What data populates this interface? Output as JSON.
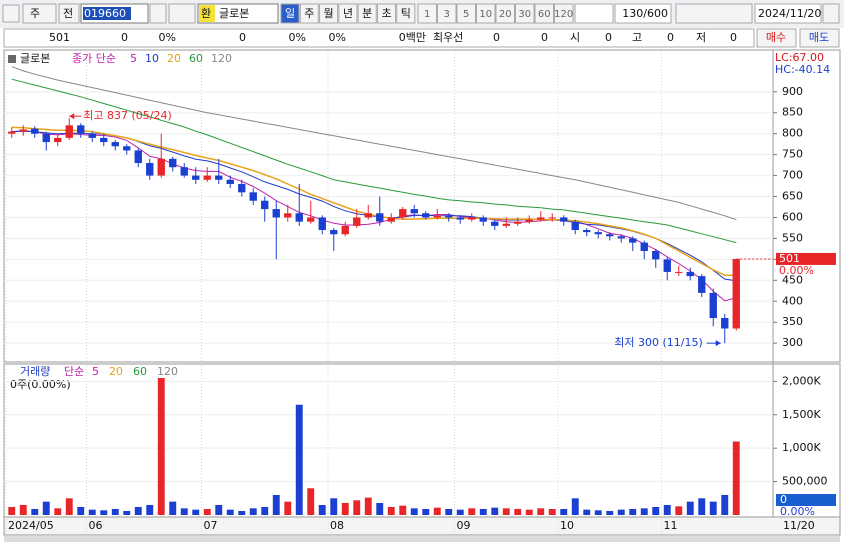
{
  "toolbar": {
    "market": "주",
    "prefix": "전",
    "code": "019660",
    "exchange_badge": "환",
    "name": "글로본",
    "periods": [
      "일",
      "주",
      "월",
      "년",
      "분",
      "초",
      "틱"
    ],
    "intervals": [
      "1",
      "3",
      "5",
      "10",
      "20",
      "30",
      "60",
      "120"
    ],
    "count": "130/600",
    "date": "2024/11/20"
  },
  "info_bar": {
    "cells": [
      "501",
      "0",
      "0%",
      "0",
      "0%",
      "0%",
      "0백만",
      "최우선",
      "0",
      "0",
      "시",
      "0",
      "고",
      "0",
      "저",
      "0"
    ],
    "buy": "매수",
    "sell": "매도"
  },
  "chart_data": [
    {
      "type": "candlestick",
      "title": "글로본",
      "legend_title": "종가 단순",
      "legend_title_color": "#c020b0",
      "lc": "LC:67.00",
      "hc": "HC:-40.14",
      "change_label": "0.00%",
      "last_date_label": "11/20",
      "annotations": [
        "최고 837 (05/24)",
        "최저 300 (11/15)"
      ],
      "categories": [
        "2024/05",
        null,
        null,
        null,
        null,
        null,
        null,
        "06",
        null,
        null,
        null,
        null,
        null,
        null,
        null,
        null,
        null,
        "07",
        null,
        null,
        null,
        null,
        null,
        null,
        null,
        null,
        null,
        null,
        "08",
        null,
        null,
        null,
        null,
        null,
        null,
        null,
        null,
        null,
        null,
        "09",
        null,
        null,
        null,
        null,
        null,
        null,
        null,
        null,
        "10",
        null,
        null,
        null,
        null,
        null,
        null,
        null,
        null,
        "11",
        null,
        null,
        null,
        null,
        null,
        null
      ],
      "open": [
        800,
        805,
        812,
        800,
        780,
        790,
        820,
        800,
        790,
        780,
        770,
        760,
        730,
        700,
        740,
        720,
        700,
        690,
        700,
        690,
        680,
        660,
        640,
        620,
        600,
        610,
        590,
        600,
        570,
        560,
        580,
        600,
        610,
        590,
        600,
        620,
        610,
        600,
        605,
        600,
        595,
        600,
        590,
        580,
        585,
        590,
        595,
        600,
        600,
        590,
        570,
        565,
        560,
        555,
        550,
        540,
        520,
        500,
        470,
        470,
        460,
        420,
        360,
        335
      ],
      "high": [
        815,
        820,
        818,
        805,
        800,
        837,
        825,
        805,
        800,
        785,
        775,
        765,
        740,
        800,
        745,
        730,
        720,
        720,
        740,
        700,
        690,
        670,
        650,
        640,
        630,
        680,
        640,
        605,
        575,
        590,
        620,
        630,
        650,
        610,
        625,
        630,
        615,
        620,
        610,
        605,
        610,
        605,
        595,
        600,
        600,
        605,
        615,
        610,
        605,
        595,
        575,
        570,
        565,
        560,
        555,
        545,
        525,
        505,
        485,
        480,
        465,
        430,
        370,
        501
      ],
      "low": [
        790,
        795,
        790,
        760,
        770,
        785,
        790,
        780,
        770,
        760,
        750,
        720,
        690,
        695,
        710,
        695,
        680,
        685,
        680,
        670,
        650,
        630,
        590,
        500,
        590,
        580,
        585,
        560,
        520,
        555,
        575,
        595,
        580,
        585,
        595,
        600,
        595,
        595,
        590,
        585,
        590,
        580,
        570,
        575,
        580,
        585,
        590,
        590,
        580,
        560,
        555,
        550,
        545,
        540,
        520,
        500,
        480,
        450,
        460,
        450,
        410,
        340,
        300,
        330
      ],
      "close": [
        805,
        810,
        800,
        780,
        790,
        820,
        800,
        790,
        780,
        770,
        760,
        730,
        700,
        740,
        720,
        700,
        690,
        700,
        690,
        680,
        660,
        640,
        620,
        600,
        610,
        590,
        600,
        570,
        560,
        580,
        600,
        610,
        590,
        600,
        620,
        610,
        600,
        605,
        600,
        595,
        600,
        590,
        580,
        585,
        590,
        595,
        600,
        600,
        590,
        570,
        565,
        560,
        555,
        550,
        540,
        520,
        500,
        470,
        470,
        460,
        420,
        360,
        335,
        501
      ],
      "up_color": "#e8262a",
      "down_color": "#1a3fd1",
      "series": [
        {
          "name": "5",
          "color": "#c020b0",
          "values": [
            805,
            807,
            805,
            799,
            797,
            800,
            798,
            796,
            796,
            792,
            784,
            766,
            746,
            740,
            728,
            718,
            712,
            710,
            710,
            696,
            686,
            674,
            658,
            640,
            626,
            612,
            604,
            594,
            586,
            582,
            582,
            584,
            588,
            596,
            604,
            606,
            604,
            607,
            607,
            602,
            600,
            598,
            594,
            590,
            588,
            590,
            592,
            594,
            595,
            591,
            583,
            573,
            562,
            558,
            550,
            537,
            523,
            506,
            490,
            472,
            452,
            424,
            401,
            409
          ]
        },
        {
          "name": "10",
          "color": "#1e3cc8",
          "values": [
            805,
            806,
            805,
            802,
            800,
            801,
            801,
            800,
            799,
            795,
            790,
            781,
            771,
            765,
            756,
            747,
            739,
            735,
            728,
            718,
            709,
            697,
            685,
            676,
            667,
            656,
            648,
            639,
            626,
            616,
            609,
            605,
            601,
            599,
            601,
            605,
            605,
            604,
            604,
            604,
            602,
            598,
            596,
            594,
            594,
            595,
            596,
            594,
            592,
            588,
            584,
            582,
            578,
            573,
            567,
            559,
            550,
            538,
            524,
            510,
            494,
            474,
            453,
            449
          ]
        },
        {
          "name": "20",
          "color": "#e8a31a",
          "values": [
            815,
            814,
            812,
            810,
            808,
            808,
            807,
            805,
            800,
            795,
            790,
            782,
            775,
            768,
            762,
            755,
            748,
            742,
            736,
            728,
            720,
            712,
            702,
            692,
            680,
            668,
            655,
            645,
            635,
            625,
            615,
            608,
            602,
            598,
            596,
            596,
            597,
            598,
            598,
            598,
            598,
            598,
            597,
            596,
            596,
            596,
            595,
            595,
            594,
            592,
            589,
            585,
            580,
            575,
            568,
            560,
            550,
            535,
            520,
            505,
            490,
            475,
            462,
            462
          ]
        },
        {
          "name": "60",
          "color": "#2a9a3a",
          "values": [
            930,
            923,
            916,
            909,
            902,
            895,
            888,
            880,
            872,
            864,
            856,
            848,
            840,
            832,
            824,
            816,
            806,
            797,
            787,
            777,
            767,
            757,
            747,
            737,
            727,
            718,
            709,
            700,
            690,
            685,
            680,
            675,
            670,
            665,
            660,
            655,
            651,
            646,
            642,
            640,
            637,
            635,
            632,
            630,
            627,
            625,
            623,
            620,
            618,
            614,
            610,
            606,
            602,
            598,
            594,
            590,
            586,
            582,
            575,
            568,
            561,
            554,
            547,
            540
          ]
        },
        {
          "name": "120",
          "color": "#888888",
          "values": [
            960,
            950,
            942,
            935,
            928,
            922,
            916,
            910,
            904,
            898,
            892,
            886,
            880,
            874,
            868,
            862,
            856,
            850,
            845,
            840,
            835,
            830,
            825,
            820,
            815,
            810,
            805,
            800,
            795,
            790,
            785,
            780,
            775,
            770,
            765,
            760,
            755,
            750,
            745,
            740,
            735,
            730,
            725,
            720,
            715,
            710,
            705,
            700,
            695,
            690,
            684,
            678,
            672,
            666,
            660,
            654,
            648,
            642,
            636,
            628,
            620,
            612,
            604,
            595
          ]
        }
      ],
      "ylim": [
        255,
        995
      ],
      "yticks": [
        300,
        350,
        400,
        450,
        500,
        550,
        600,
        650,
        700,
        750,
        800,
        850,
        900
      ],
      "grid": true
    },
    {
      "type": "bar",
      "title": "거래량",
      "title_color": "#1e3cc8",
      "legend_title": "단순",
      "legend_title_color": "#c020b0",
      "legend": [
        {
          "name": "5",
          "color": "#c020b0"
        },
        {
          "name": "20",
          "color": "#e8a31a"
        },
        {
          "name": "60",
          "color": "#2a9a3a"
        },
        {
          "name": "120",
          "color": "#888888"
        }
      ],
      "subtitle": "0주(0.00%)",
      "current_label": "0",
      "current_pct": "0.00%",
      "values": [
        120000,
        150000,
        90000,
        200000,
        100000,
        250000,
        120000,
        80000,
        70000,
        90000,
        60000,
        120000,
        150000,
        2050000,
        200000,
        100000,
        80000,
        90000,
        150000,
        80000,
        60000,
        100000,
        120000,
        300000,
        200000,
        1650000,
        400000,
        150000,
        250000,
        180000,
        220000,
        260000,
        180000,
        120000,
        140000,
        100000,
        90000,
        110000,
        90000,
        80000,
        100000,
        90000,
        110000,
        100000,
        90000,
        80000,
        100000,
        90000,
        90000,
        250000,
        80000,
        70000,
        60000,
        80000,
        90000,
        100000,
        120000,
        150000,
        130000,
        200000,
        250000,
        200000,
        300000,
        1100000
      ],
      "ylim": [
        0,
        2230000
      ],
      "yticks": [
        {
          "value": 500000,
          "label": "500,000"
        },
        {
          "value": 1000000,
          "label": "1,000K"
        },
        {
          "value": 1500000,
          "label": "1,500K"
        },
        {
          "value": 2000000,
          "label": "2,000K"
        }
      ]
    }
  ]
}
